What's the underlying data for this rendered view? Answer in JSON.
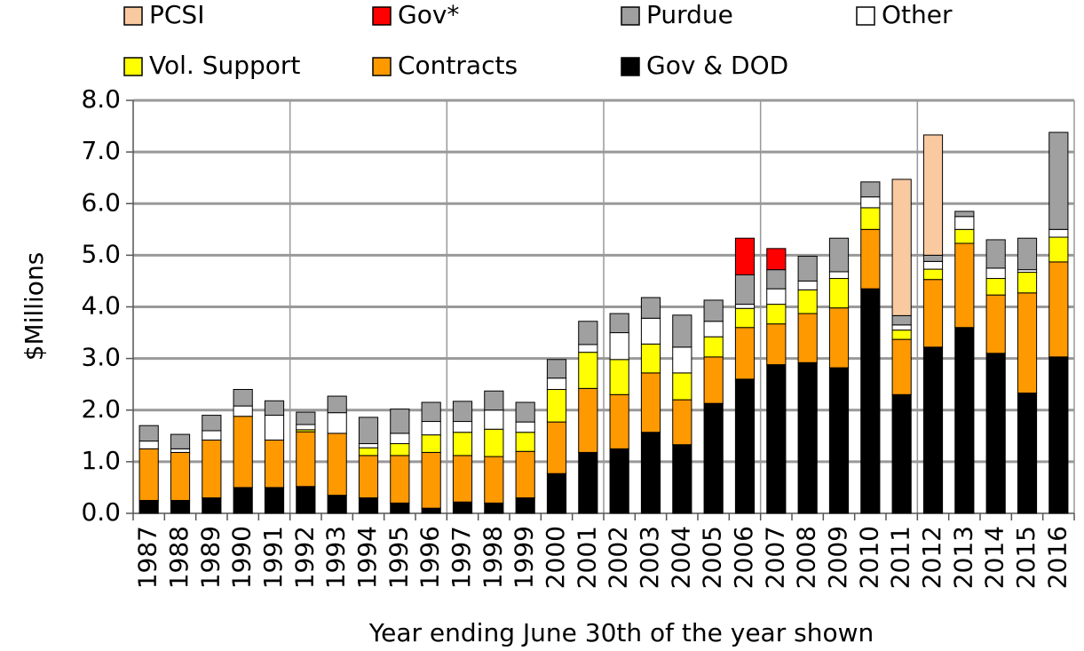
{
  "chart_data": {
    "type": "stacked_bar",
    "y_label": "$Millions",
    "x_label": "Year ending June 30th of the year shown",
    "categories": [
      "1987",
      "1988",
      "1989",
      "1990",
      "1991",
      "1992",
      "1993",
      "1994",
      "1995",
      "1996",
      "1997",
      "1998",
      "1999",
      "2000",
      "2001",
      "2002",
      "2003",
      "2004",
      "2005",
      "2006",
      "2007",
      "2008",
      "2009",
      "2010",
      "2011",
      "2012",
      "2013",
      "2014",
      "2015",
      "2016"
    ],
    "series": [
      {
        "name": "Gov & DOD",
        "color": "#000000",
        "values": [
          0.25,
          0.25,
          0.3,
          0.5,
          0.5,
          0.52,
          0.35,
          0.3,
          0.2,
          0.1,
          0.22,
          0.2,
          0.3,
          0.77,
          1.18,
          1.25,
          1.57,
          1.33,
          2.13,
          2.6,
          2.88,
          2.92,
          2.82,
          4.35,
          2.3,
          3.22,
          3.6,
          3.1,
          2.33,
          3.03
        ]
      },
      {
        "name": "Contracts",
        "color": "#ff9900",
        "values": [
          1.0,
          0.93,
          1.12,
          1.38,
          0.92,
          1.06,
          1.2,
          0.82,
          0.92,
          1.08,
          0.9,
          0.9,
          0.9,
          1.0,
          1.24,
          1.05,
          1.15,
          0.87,
          0.9,
          1.0,
          0.79,
          0.95,
          1.16,
          1.15,
          1.07,
          1.31,
          1.63,
          1.13,
          1.94,
          1.84
        ]
      },
      {
        "name": "Vol. Support",
        "color": "#ffff00",
        "values": [
          0,
          0,
          0,
          0,
          0,
          0.04,
          0,
          0.15,
          0.23,
          0.34,
          0.45,
          0.53,
          0.37,
          0.63,
          0.7,
          0.68,
          0.56,
          0.52,
          0.39,
          0.37,
          0.38,
          0.46,
          0.57,
          0.42,
          0.18,
          0.2,
          0.27,
          0.32,
          0.4,
          0.48
        ]
      },
      {
        "name": "Other",
        "color": "#ffffff",
        "values": [
          0.15,
          0.07,
          0.18,
          0.2,
          0.48,
          0.1,
          0.4,
          0.08,
          0.2,
          0.26,
          0.21,
          0.37,
          0.2,
          0.22,
          0.15,
          0.52,
          0.5,
          0.5,
          0.3,
          0.08,
          0.3,
          0.17,
          0.13,
          0.21,
          0.1,
          0.15,
          0.25,
          0.2,
          0.05,
          0.15
        ]
      },
      {
        "name": "Purdue",
        "color": "#a0a0a0",
        "values": [
          0.3,
          0.28,
          0.3,
          0.32,
          0.28,
          0.24,
          0.32,
          0.51,
          0.47,
          0.37,
          0.39,
          0.37,
          0.38,
          0.36,
          0.45,
          0.37,
          0.4,
          0.62,
          0.41,
          0.57,
          0.37,
          0.48,
          0.65,
          0.29,
          0.18,
          0.12,
          0.1,
          0.55,
          0.61,
          1.88
        ]
      },
      {
        "name": "Gov*",
        "color": "#ff0000",
        "values": [
          0,
          0,
          0,
          0,
          0,
          0,
          0,
          0,
          0,
          0,
          0,
          0,
          0,
          0,
          0,
          0,
          0,
          0,
          0,
          0.71,
          0.41,
          0,
          0,
          0,
          0,
          0,
          0,
          0,
          0,
          0
        ]
      },
      {
        "name": "PCSI",
        "color": "#f9c9a0",
        "values": [
          0,
          0,
          0,
          0,
          0,
          0,
          0,
          0,
          0,
          0,
          0,
          0,
          0,
          0,
          0,
          0,
          0,
          0,
          0,
          0,
          0,
          0,
          0,
          0,
          2.64,
          2.33,
          0,
          0,
          0,
          0
        ]
      }
    ],
    "ylim": [
      0,
      8
    ],
    "yticks": [
      {
        "value": 0,
        "label": "0.0"
      },
      {
        "value": 1,
        "label": "1.0"
      },
      {
        "value": 2,
        "label": "2.0"
      },
      {
        "value": 3,
        "label": "3.0"
      },
      {
        "value": 4,
        "label": "4.0"
      },
      {
        "value": 5,
        "label": "5.0"
      },
      {
        "value": 6,
        "label": "6.0"
      },
      {
        "value": 7,
        "label": "7.0"
      },
      {
        "value": 8,
        "label": "8.0"
      }
    ],
    "grid": true
  }
}
